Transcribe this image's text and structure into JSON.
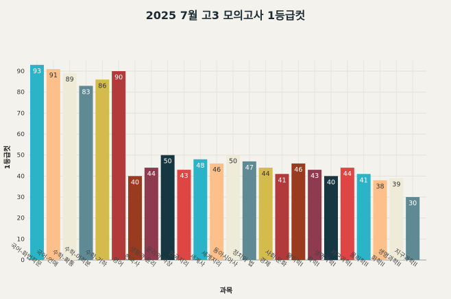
{
  "chart_data": {
    "type": "bar",
    "title": "2025 7월 고3 모의고사 1등급컷",
    "xlabel": "과목",
    "ylabel": "1등급컷",
    "ylim": [
      0,
      95
    ],
    "yticks": [
      0,
      10,
      20,
      30,
      40,
      50,
      60,
      70,
      80,
      90
    ],
    "grid": true,
    "categories": [
      "국어-화법작문",
      "국어-언매",
      "수학-확통",
      "수학-미적분",
      "수학-기하",
      "영어",
      "한국사",
      "생활과 윤리",
      "윤리와 사상",
      "한국지리",
      "세계사",
      "세계지리",
      "동아시아사",
      "정치와 법",
      "경제",
      "사회·문화",
      "물리학I",
      "화학I",
      "생명과학I",
      "지구과학I",
      "물리학II",
      "화학II",
      "생명과학II",
      "지구과학II"
    ],
    "values": [
      93,
      91,
      89,
      83,
      86,
      90,
      40,
      44,
      50,
      43,
      48,
      46,
      50,
      47,
      44,
      41,
      46,
      43,
      40,
      44,
      41,
      38,
      39,
      30
    ],
    "colors": [
      "#2bb3c8",
      "#fdc08a",
      "#eeecd8",
      "#5f8a93",
      "#d3bb4c",
      "#b23a3a",
      "#9a3b1f",
      "#8e3a4f",
      "#163641",
      "#de4646"
    ]
  }
}
